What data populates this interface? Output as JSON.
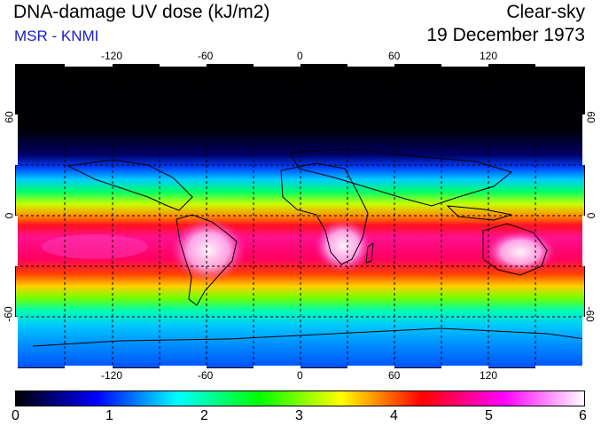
{
  "header": {
    "title": "DNA-damage UV dose (kJ/m2)",
    "subtitle": "MSR - KNMI",
    "condition": "Clear-sky",
    "date": "19 December 1973"
  },
  "map": {
    "longitude_ticks": [
      "-120",
      "-60",
      "0",
      "60",
      "120"
    ],
    "latitude_ticks": [
      "60",
      "0",
      "-60"
    ],
    "longitude_range": [
      -180,
      180
    ],
    "latitude_range": [
      -90,
      90
    ]
  },
  "colorbar": {
    "labels": [
      "0",
      "1",
      "2",
      "3",
      "4",
      "5",
      "6"
    ],
    "min": 0,
    "max": 6,
    "colors": [
      "#000000",
      "#0000ff",
      "#00ffff",
      "#00ff00",
      "#ffff00",
      "#ff0000",
      "#ff00ff",
      "#ffffff"
    ]
  }
}
